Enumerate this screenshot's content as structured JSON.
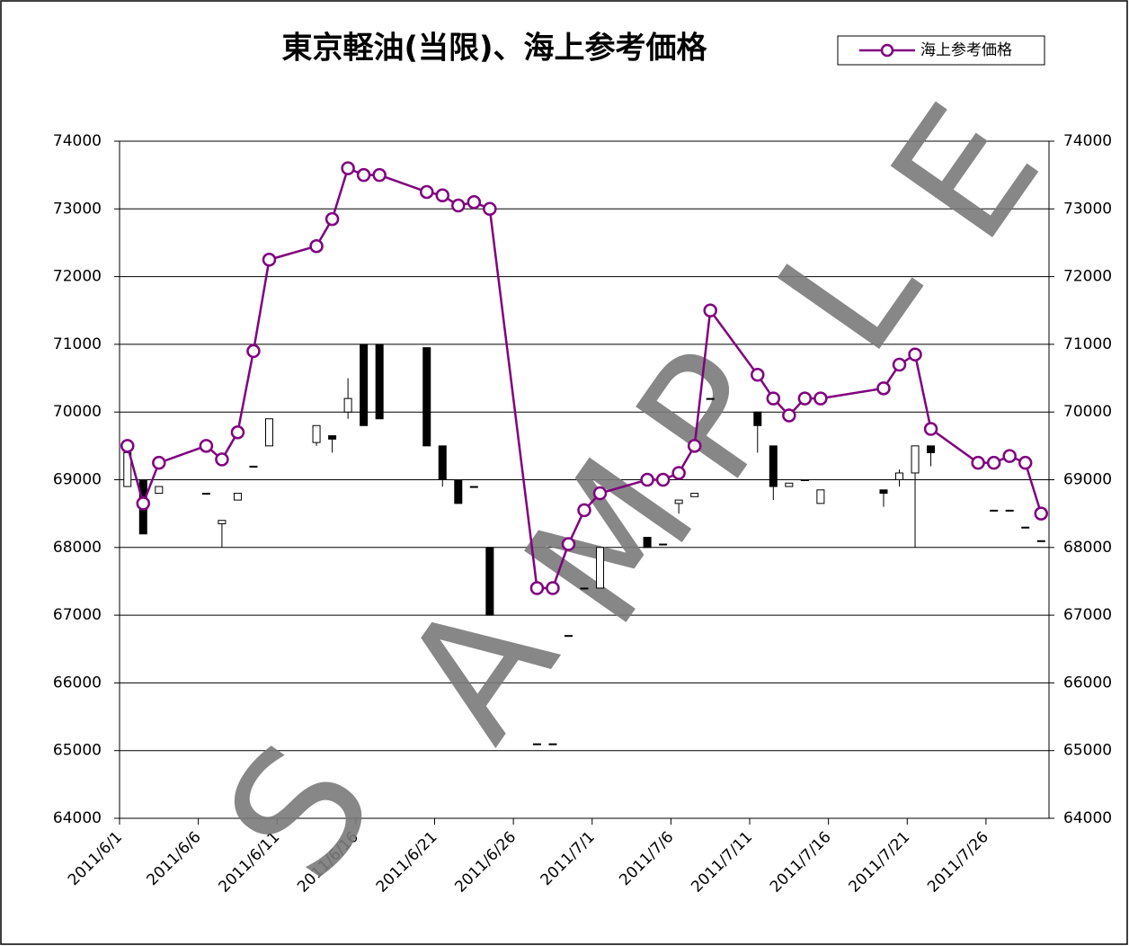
{
  "chart_data": {
    "type": "candlestick-line",
    "title": "東京軽油(当限)、海上参考価格",
    "watermark": [
      "S",
      "A",
      "M",
      "P",
      "L",
      "E"
    ],
    "xlim": [
      "2011/6/1",
      "2011/7/30"
    ],
    "xticks": [
      "2011/6/1",
      "2011/6/6",
      "2011/6/11",
      "2011/6/16",
      "2011/6/21",
      "2011/6/26",
      "2011/7/1",
      "2011/7/6",
      "2011/7/11",
      "2011/7/16",
      "2011/7/21",
      "2011/7/26"
    ],
    "ylim": [
      64000,
      74000
    ],
    "yticks": [
      64000,
      65000,
      66000,
      67000,
      68000,
      69000,
      70000,
      71000,
      72000,
      73000,
      74000
    ],
    "y2lim": [
      64000,
      74000
    ],
    "y2ticks": [
      64000,
      65000,
      66000,
      67000,
      68000,
      69000,
      70000,
      71000,
      72000,
      73000,
      74000
    ],
    "grid": true,
    "legend": "top-right",
    "candles": {
      "x": [
        "2011/6/1",
        "2011/6/2",
        "2011/6/3",
        "2011/6/6",
        "2011/6/7",
        "2011/6/8",
        "2011/6/9",
        "2011/6/10",
        "2011/6/13",
        "2011/6/14",
        "2011/6/15",
        "2011/6/16",
        "2011/6/17",
        "2011/6/20",
        "2011/6/21",
        "2011/6/22",
        "2011/6/23",
        "2011/6/24",
        "2011/6/27",
        "2011/6/28",
        "2011/6/29",
        "2011/6/30",
        "2011/7/1",
        "2011/7/4",
        "2011/7/5",
        "2011/7/6",
        "2011/7/7",
        "2011/7/8",
        "2011/7/11",
        "2011/7/12",
        "2011/7/13",
        "2011/7/14",
        "2011/7/15",
        "2011/7/19",
        "2011/7/20",
        "2011/7/21",
        "2011/7/22",
        "2011/7/25",
        "2011/7/26",
        "2011/7/27",
        "2011/7/28",
        "2011/7/29"
      ],
      "open": [
        68900,
        69000,
        68800,
        68800,
        68350,
        68700,
        69200,
        69500,
        69550,
        69650,
        70000,
        71000,
        71000,
        70950,
        69500,
        69000,
        68900,
        68000,
        65100,
        65100,
        66700,
        67400,
        67400,
        68150,
        68050,
        68650,
        68750,
        70200,
        70000,
        69500,
        68900,
        69000,
        68650,
        68850,
        69000,
        69100,
        69500,
        69300,
        68550,
        68550,
        68300,
        68100
      ],
      "high": [
        69400,
        69000,
        68900,
        68800,
        68400,
        68800,
        69200,
        69900,
        69800,
        69650,
        70500,
        71000,
        71000,
        70950,
        69500,
        69000,
        68900,
        68000,
        65100,
        65100,
        66700,
        67400,
        68000,
        68150,
        68050,
        68700,
        68800,
        70200,
        70000,
        69500,
        68950,
        69000,
        68850,
        68850,
        69150,
        69500,
        69500,
        69300,
        68550,
        68550,
        68300,
        68100
      ],
      "low": [
        68900,
        68200,
        68800,
        68800,
        68000,
        68700,
        69200,
        69500,
        69500,
        69400,
        69900,
        69800,
        69900,
        69500,
        68900,
        68650,
        68900,
        67000,
        65100,
        65100,
        66700,
        67400,
        67400,
        68000,
        68050,
        68500,
        68750,
        70200,
        69400,
        68700,
        68900,
        69000,
        68650,
        68600,
        68900,
        68000,
        69200,
        69250,
        68550,
        68550,
        68300,
        68100
      ],
      "close": [
        69400,
        68200,
        68900,
        68800,
        68400,
        68800,
        69200,
        69900,
        69800,
        69600,
        70200,
        69800,
        69900,
        69500,
        69000,
        68650,
        68900,
        67000,
        65100,
        65100,
        66700,
        67400,
        68000,
        68000,
        68050,
        68700,
        68800,
        70200,
        69800,
        68900,
        68950,
        69000,
        68850,
        68800,
        69100,
        69500,
        69400,
        69250,
        68550,
        68550,
        68300,
        68100
      ]
    },
    "series": [
      {
        "name": "海上参考価格",
        "color": "#800080",
        "x": [
          "2011/6/1",
          "2011/6/2",
          "2011/6/3",
          "2011/6/6",
          "2011/6/7",
          "2011/6/8",
          "2011/6/9",
          "2011/6/10",
          "2011/6/13",
          "2011/6/14",
          "2011/6/15",
          "2011/6/16",
          "2011/6/17",
          "2011/6/20",
          "2011/6/21",
          "2011/6/22",
          "2011/6/23",
          "2011/6/24",
          "2011/6/27",
          "2011/6/28",
          "2011/6/29",
          "2011/6/30",
          "2011/7/1",
          "2011/7/4",
          "2011/7/5",
          "2011/7/6",
          "2011/7/7",
          "2011/7/8",
          "2011/7/11",
          "2011/7/12",
          "2011/7/13",
          "2011/7/14",
          "2011/7/15",
          "2011/7/19",
          "2011/7/20",
          "2011/7/21",
          "2011/7/22",
          "2011/7/25",
          "2011/7/26",
          "2011/7/27",
          "2011/7/28",
          "2011/7/29"
        ],
        "values": [
          69500,
          68650,
          69250,
          69500,
          69300,
          69700,
          70900,
          72250,
          72450,
          72850,
          73600,
          73500,
          73500,
          73250,
          73200,
          73050,
          73100,
          73000,
          67400,
          67400,
          68050,
          68550,
          68800,
          69000,
          69000,
          69100,
          69500,
          71500,
          70550,
          70200,
          69950,
          70200,
          70200,
          70350,
          70700,
          70850,
          69750,
          69250,
          69250,
          69350,
          69250,
          68500
        ]
      }
    ]
  }
}
